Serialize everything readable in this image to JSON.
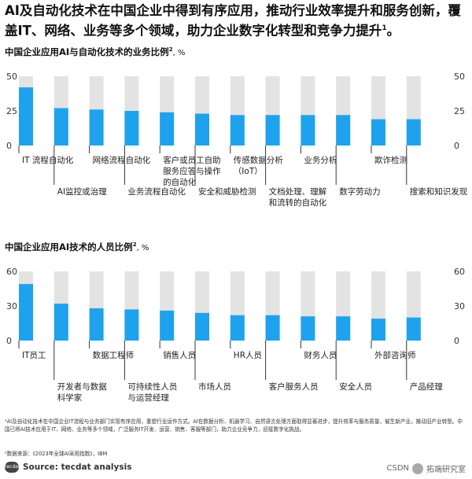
{
  "header": {
    "headline": "AI及自动化技术在中国企业中得到有序应用，推动行业效率提升和服务创新，覆盖IT、网络、业务等多个领域，助力企业数字化转型和竞争力提升",
    "headline_sup": "1",
    "headline_end": "。"
  },
  "chart_data": [
    {
      "type": "bar",
      "title": "中国企业应用AI与自动化技术的业务比例",
      "title_sup": "2",
      "unit": "%",
      "ylim": [
        0,
        50
      ],
      "yticks": [
        "0",
        "25",
        "50"
      ],
      "categories": [
        "IT 流程自动化",
        "AI监控或治理",
        "网络流程自动化",
        "业务流程自动化",
        "客户或员工自助服务应答与操作的自动化",
        "安全和威胁检测",
        "传感数据分析（IoT）",
        "文档处理、理解和流转的自动化",
        "业务分析",
        "数字劳动力",
        "欺诈检测",
        "搜索和知识发现"
      ],
      "label_lines": [
        [
          "IT 流程自动化"
        ],
        [
          "AI监控或治理"
        ],
        [
          "网络流程自动化"
        ],
        [
          "业务流程自动化"
        ],
        [
          "客户或员工自助",
          "服务应答与操作",
          "的自动化"
        ],
        [
          "安全和威胁检测"
        ],
        [
          "传感数据分析",
          "（IoT）"
        ],
        [
          "文档处理、理解",
          "和流转的自动化"
        ],
        [
          "业务分析"
        ],
        [
          "数字劳动力"
        ],
        [
          "欺诈检测"
        ],
        [
          "搜索和知识发现"
        ]
      ],
      "values": [
        42,
        27,
        26,
        25,
        24,
        23,
        22,
        22,
        22,
        22,
        19,
        19
      ],
      "bar_color": "#1fa2ee",
      "track_color": "#e3e3e3",
      "grid": false
    },
    {
      "type": "bar",
      "title": "中国企业应用AI技术的人员比例",
      "title_sup": "2",
      "unit": "%",
      "ylim": [
        0,
        60
      ],
      "yticks": [
        "0",
        "30",
        "60"
      ],
      "categories": [
        "IT员工",
        "开发者与数据科学家",
        "数据工程师",
        "可持续性人员与运营经理",
        "销售人员",
        "市场人员",
        "HR人员",
        "客户服务人员",
        "财务人员",
        "安全人员",
        "外部咨询师",
        "产品经理"
      ],
      "label_lines": [
        [
          "IT员工"
        ],
        [
          "开发者与数据",
          "科学家"
        ],
        [
          "数据工程师"
        ],
        [
          "可持续性人员",
          "与运营经理"
        ],
        [
          "销售人员"
        ],
        [
          "市场人员"
        ],
        [
          "HR人员"
        ],
        [
          "客户服务人员"
        ],
        [
          "财务人员"
        ],
        [
          "安全人员"
        ],
        [
          "外部咨询师"
        ],
        [
          "产品经理"
        ]
      ],
      "values": [
        49,
        32,
        28,
        27,
        26,
        24,
        22,
        22,
        21,
        21,
        19,
        20
      ],
      "bar_color": "#1fa2ee",
      "track_color": "#e3e3e3",
      "grid": false
    }
  ],
  "footer": {
    "footnote1": "¹AI及自动化技术在中国企业IT流程与业务部门实现有序应用，重塑行业运作方式。AI在数据分析、机器学习、自然语言处理方面取得显著进步，提升效率与服务质量，催生新产业，推动旧产业转型。中国已将AI技术应用于IT、网络、业务等多个领域，广泛服务IT开发、运营、销售、客服等部门，助力企业竞争力，迎接数字化挑战。",
    "footnote2": "²数据来源：《2023年全球AI采用指数》，IBM",
    "source_logo": "tecdat",
    "source": "Source: tecdat analysis",
    "watermark_left": "CSDN",
    "watermark_right": "拓端研究室"
  }
}
